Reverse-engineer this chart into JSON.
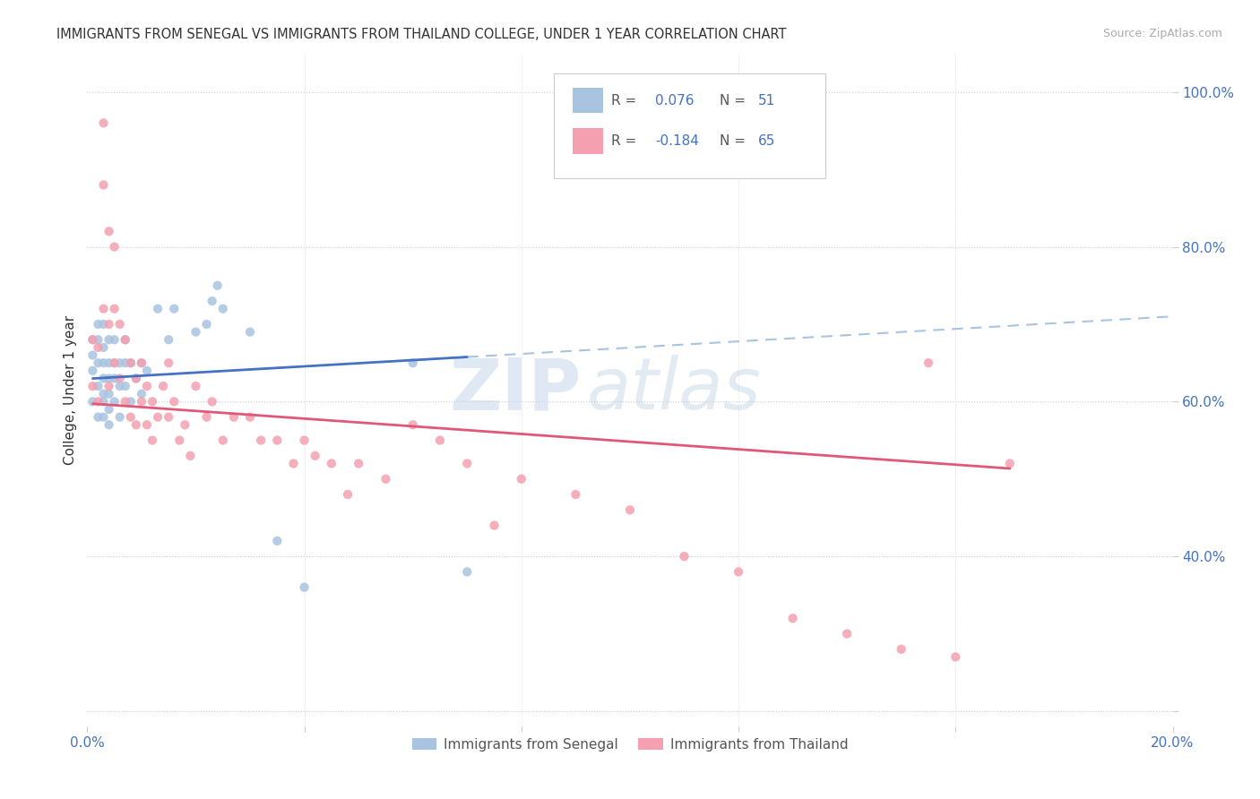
{
  "title": "IMMIGRANTS FROM SENEGAL VS IMMIGRANTS FROM THAILAND COLLEGE, UNDER 1 YEAR CORRELATION CHART",
  "source": "Source: ZipAtlas.com",
  "ylabel": "College, Under 1 year",
  "xlim": [
    0.0,
    0.2
  ],
  "ylim": [
    0.18,
    1.05
  ],
  "senegal_color": "#a8c4e0",
  "thailand_color": "#f4a0b0",
  "senegal_line_color": "#4472c4",
  "thailand_line_color": "#e05878",
  "dashed_line_color": "#a8c4e0",
  "senegal_R": 0.076,
  "senegal_N": 51,
  "thailand_R": -0.184,
  "thailand_N": 65,
  "watermark_zip": "ZIP",
  "watermark_atlas": "atlas",
  "senegal_x": [
    0.001,
    0.001,
    0.001,
    0.001,
    0.002,
    0.002,
    0.002,
    0.002,
    0.002,
    0.003,
    0.003,
    0.003,
    0.003,
    0.003,
    0.003,
    0.003,
    0.004,
    0.004,
    0.004,
    0.004,
    0.004,
    0.004,
    0.005,
    0.005,
    0.005,
    0.005,
    0.006,
    0.006,
    0.006,
    0.007,
    0.007,
    0.007,
    0.008,
    0.008,
    0.009,
    0.01,
    0.01,
    0.011,
    0.013,
    0.015,
    0.016,
    0.02,
    0.022,
    0.023,
    0.024,
    0.025,
    0.03,
    0.035,
    0.04,
    0.06,
    0.07
  ],
  "senegal_y": [
    0.68,
    0.66,
    0.64,
    0.6,
    0.7,
    0.68,
    0.65,
    0.62,
    0.58,
    0.7,
    0.67,
    0.65,
    0.63,
    0.61,
    0.6,
    0.58,
    0.68,
    0.65,
    0.63,
    0.61,
    0.59,
    0.57,
    0.68,
    0.65,
    0.63,
    0.6,
    0.65,
    0.62,
    0.58,
    0.68,
    0.65,
    0.62,
    0.65,
    0.6,
    0.63,
    0.65,
    0.61,
    0.64,
    0.72,
    0.68,
    0.72,
    0.69,
    0.7,
    0.73,
    0.75,
    0.72,
    0.69,
    0.42,
    0.36,
    0.65,
    0.38
  ],
  "thailand_x": [
    0.001,
    0.001,
    0.002,
    0.002,
    0.003,
    0.003,
    0.003,
    0.004,
    0.004,
    0.004,
    0.005,
    0.005,
    0.005,
    0.006,
    0.006,
    0.007,
    0.007,
    0.008,
    0.008,
    0.009,
    0.009,
    0.01,
    0.01,
    0.011,
    0.011,
    0.012,
    0.012,
    0.013,
    0.014,
    0.015,
    0.015,
    0.016,
    0.017,
    0.018,
    0.019,
    0.02,
    0.022,
    0.023,
    0.025,
    0.027,
    0.03,
    0.032,
    0.035,
    0.038,
    0.04,
    0.042,
    0.045,
    0.048,
    0.05,
    0.055,
    0.06,
    0.065,
    0.07,
    0.075,
    0.08,
    0.09,
    0.1,
    0.11,
    0.12,
    0.13,
    0.14,
    0.15,
    0.155,
    0.16,
    0.17
  ],
  "thailand_y": [
    0.68,
    0.62,
    0.67,
    0.6,
    0.96,
    0.88,
    0.72,
    0.82,
    0.7,
    0.62,
    0.8,
    0.72,
    0.65,
    0.7,
    0.63,
    0.68,
    0.6,
    0.65,
    0.58,
    0.63,
    0.57,
    0.65,
    0.6,
    0.62,
    0.57,
    0.6,
    0.55,
    0.58,
    0.62,
    0.65,
    0.58,
    0.6,
    0.55,
    0.57,
    0.53,
    0.62,
    0.58,
    0.6,
    0.55,
    0.58,
    0.58,
    0.55,
    0.55,
    0.52,
    0.55,
    0.53,
    0.52,
    0.48,
    0.52,
    0.5,
    0.57,
    0.55,
    0.52,
    0.44,
    0.5,
    0.48,
    0.46,
    0.4,
    0.38,
    0.32,
    0.3,
    0.28,
    0.65,
    0.27,
    0.52
  ]
}
